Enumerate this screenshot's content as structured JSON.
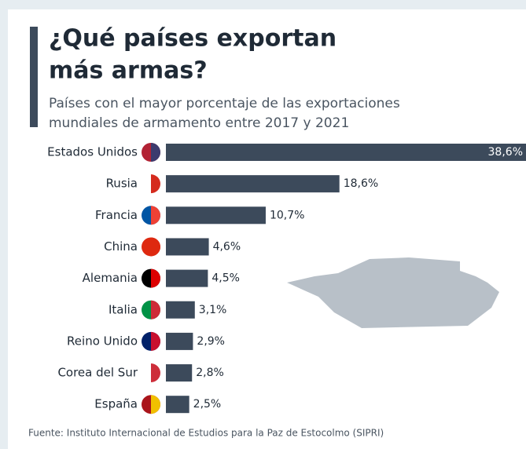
{
  "chart_data": {
    "type": "bar",
    "title": [
      "¿Qué países exportan",
      "más armas?"
    ],
    "subtitle": [
      "Países con el mayor porcentaje de las exportaciones",
      "mundiales de armamento entre 2017 y 2021"
    ],
    "categories": [
      "Estados Unidos",
      "Rusia",
      "Francia",
      "China",
      "Alemania",
      "Italia",
      "Reino Unido",
      "Corea del Sur",
      "España"
    ],
    "values": [
      38.6,
      18.6,
      10.7,
      4.6,
      4.5,
      3.1,
      2.9,
      2.8,
      2.5
    ],
    "value_labels": [
      "38,6%",
      "18,6%",
      "10,7%",
      "4,6%",
      "4,5%",
      "3,1%",
      "2,9%",
      "2,8%",
      "2,5%"
    ],
    "color": "#3c4a5b",
    "source": "Fuente: Instituto Internacional de Estudios para la Paz de Estocolmo (SIPRI)"
  }
}
